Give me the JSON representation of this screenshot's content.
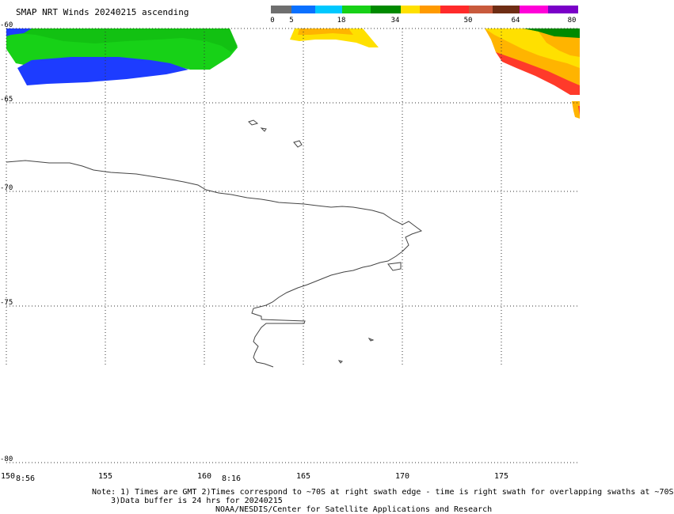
{
  "title": "SMAP NRT Winds 20240215 ascending",
  "colorbar": {
    "labels": [
      "0",
      "5",
      "18",
      "34",
      "50",
      "64",
      "80"
    ],
    "colors": [
      "#6e6e6e",
      "#0a70ff",
      "#00c8ff",
      "#17d117",
      "#008a00",
      "#ffe000",
      "#ff9a00",
      "#ff2a2a",
      "#c85a3c",
      "#6e2d14",
      "#ff00d8",
      "#7a00c8"
    ]
  },
  "latitude_labels": [
    "-60",
    "-65",
    "-70",
    "-75",
    "-80"
  ],
  "longitude_labels": [
    "150",
    "155",
    "160",
    "165",
    "170",
    "175"
  ],
  "time_labels": [
    "8:56",
    "8:16"
  ],
  "notes": [
    "Note: 1) Times are GMT 2)Times correspond to ~70S at right swath edge - time is right swath for overlapping swaths at ~70S",
    "3)Data buffer is 24 hrs for 20240215",
    "NOAA/NESDIS/Center for Satellite Applications and Research"
  ]
}
